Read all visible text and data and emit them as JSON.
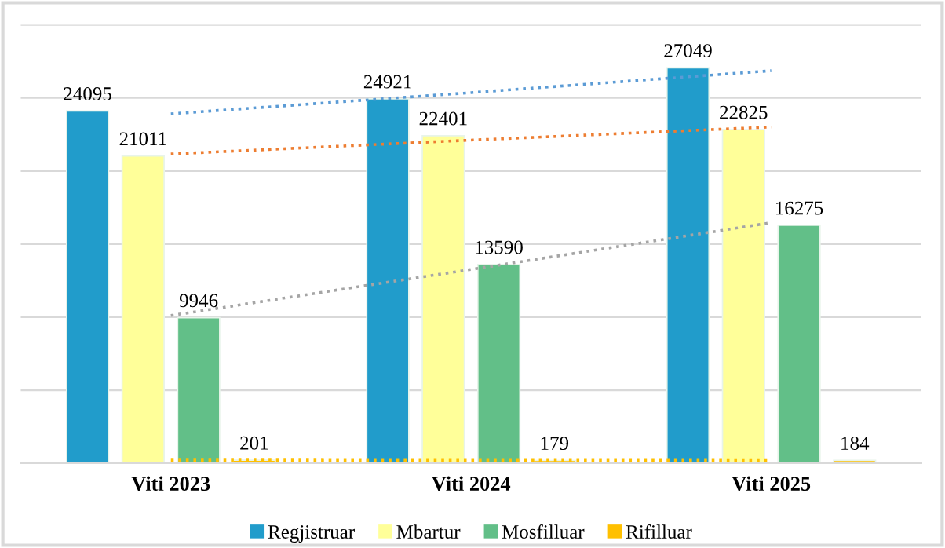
{
  "chart_data": {
    "type": "bar",
    "categories": [
      "Viti 2023",
      "Viti 2024",
      "Viti 2025"
    ],
    "series": [
      {
        "name": "Regjistruar",
        "color": "#219ccb",
        "values": [
          24095,
          24921,
          27049
        ],
        "value_labels": [
          "24095",
          "24921",
          "27049"
        ]
      },
      {
        "name": "Mbartur",
        "color": "#ffff99",
        "values": [
          21011,
          22401,
          22825
        ],
        "value_labels": [
          "21011",
          "22401",
          "22825"
        ]
      },
      {
        "name": "Mosfilluar",
        "color": "#62bf88",
        "values": [
          9946,
          13590,
          16275
        ],
        "value_labels": [
          "9946",
          "13590",
          "16275"
        ]
      },
      {
        "name": "Rifilluar",
        "color": "#ffc000",
        "values": [
          201,
          179,
          184
        ],
        "value_labels": [
          "201",
          "179",
          "184"
        ]
      },
      {
        "type": "line",
        "color": "#5b9bd5",
        "line_style": "dotted",
        "values": [
          23900,
          25350,
          26850
        ]
      },
      {
        "type": "line",
        "color": "#ed7d31",
        "line_style": "dotted",
        "values": [
          21150,
          22100,
          23000
        ]
      },
      {
        "type": "line",
        "color": "#a5a5a5",
        "line_style": "dotted",
        "values": [
          10100,
          13250,
          16450
        ]
      },
      {
        "type": "line",
        "color": "#ffc000",
        "line_style": "dotted",
        "values": [
          200,
          190,
          180
        ]
      }
    ],
    "ylim": [
      0,
      30000
    ],
    "yticks": [
      {
        "value": 0,
        "label": null
      },
      {
        "value": 5000,
        "label": null
      },
      {
        "value": 10000,
        "label": null
      },
      {
        "value": 15000,
        "label": null
      },
      {
        "value": 20000,
        "label": null
      },
      {
        "value": 25000,
        "label": null
      },
      {
        "value": 30000,
        "label": null
      }
    ],
    "tick_labels": "x",
    "grid": "y",
    "legend": "bottom"
  }
}
